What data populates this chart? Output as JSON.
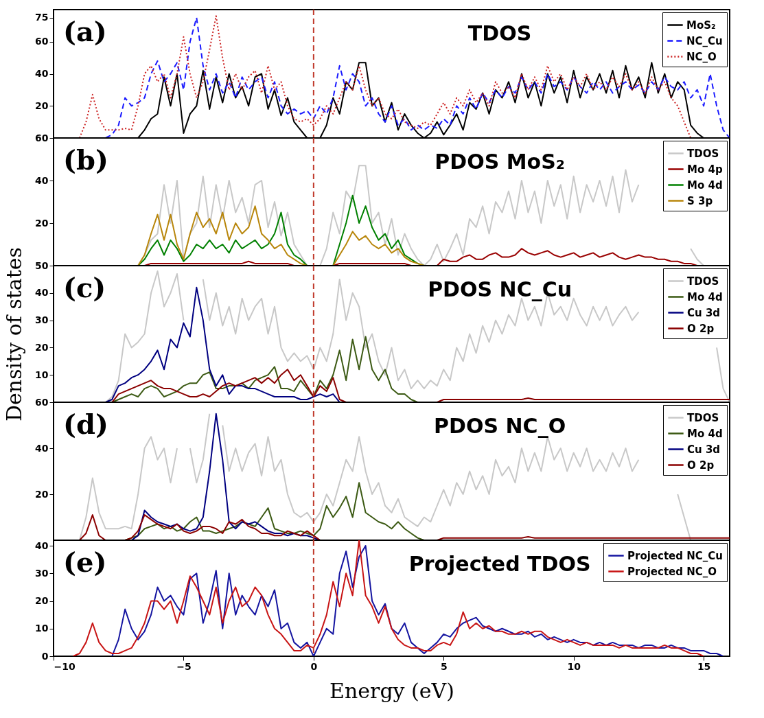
{
  "chart_data": [
    {
      "type": "line",
      "title": "TDOS",
      "annotations": [
        "(a)"
      ],
      "x": [
        -9,
        -8.75,
        -8.5,
        -8.25,
        -8,
        -7.75,
        -7.5,
        -7.25,
        -7,
        -6.75,
        -6.5,
        -6.25,
        -6,
        -5.75,
        -5.5,
        -5.25,
        -5,
        -4.75,
        -4.5,
        -4.25,
        -4,
        -3.75,
        -3.5,
        -3.25,
        -3,
        -2.75,
        -2.5,
        -2.25,
        -2,
        -1.75,
        -1.5,
        -1.25,
        -1,
        -0.75,
        -0.5,
        -0.25,
        0,
        0.25,
        0.5,
        0.75,
        1,
        1.25,
        1.5,
        1.75,
        2,
        2.25,
        2.5,
        2.75,
        3,
        3.25,
        3.5,
        3.75,
        4,
        4.25,
        4.5,
        4.75,
        5,
        5.25,
        5.5,
        5.75,
        6,
        6.25,
        6.5,
        6.75,
        7,
        7.25,
        7.5,
        7.75,
        8,
        8.25,
        8.5,
        8.75,
        9,
        9.25,
        9.5,
        9.75,
        10,
        10.25,
        10.5,
        10.75,
        11,
        11.25,
        11.5,
        11.75,
        12,
        12.25,
        12.5,
        12.75,
        13,
        13.25,
        13.5,
        13.75,
        14,
        14.25,
        14.5,
        14.75,
        15,
        15.25,
        15.5,
        15.75,
        16
      ],
      "series": [
        {
          "name": "MoS₂",
          "color": "#000000",
          "line_style": "solid",
          "values": [
            null,
            null,
            null,
            null,
            null,
            null,
            null,
            null,
            null,
            0,
            5,
            12,
            15,
            38,
            20,
            40,
            3,
            15,
            20,
            42,
            18,
            38,
            22,
            40,
            25,
            32,
            20,
            38,
            40,
            18,
            30,
            14,
            25,
            10,
            5,
            0,
            null,
            0,
            8,
            25,
            15,
            35,
            30,
            47,
            47,
            20,
            25,
            10,
            22,
            5,
            15,
            8,
            3,
            0,
            3,
            10,
            2,
            8,
            15,
            5,
            22,
            18,
            28,
            15,
            30,
            25,
            35,
            22,
            40,
            25,
            35,
            20,
            40,
            28,
            38,
            22,
            42,
            25,
            38,
            30,
            40,
            28,
            42,
            25,
            45,
            30,
            38,
            25,
            47,
            28,
            40,
            25,
            35,
            30,
            8,
            3,
            0,
            null,
            null,
            null,
            null
          ]
        },
        {
          "name": "NC_Cu",
          "color": "#1a1aff",
          "line_style": "dashed",
          "values": [
            null,
            null,
            null,
            null,
            0,
            2,
            8,
            25,
            20,
            22,
            25,
            40,
            48,
            35,
            40,
            47,
            30,
            60,
            75,
            45,
            30,
            40,
            28,
            35,
            25,
            38,
            30,
            35,
            38,
            25,
            35,
            20,
            15,
            18,
            15,
            17,
            12,
            20,
            15,
            25,
            45,
            30,
            40,
            35,
            20,
            25,
            15,
            10,
            20,
            8,
            12,
            5,
            8,
            5,
            8,
            6,
            12,
            8,
            20,
            15,
            25,
            18,
            28,
            22,
            30,
            25,
            32,
            28,
            38,
            30,
            35,
            28,
            40,
            32,
            35,
            30,
            38,
            32,
            28,
            35,
            30,
            35,
            28,
            32,
            35,
            30,
            33,
            28,
            35,
            30,
            38,
            32,
            30,
            35,
            25,
            30,
            20,
            40,
            20,
            5,
            0
          ]
        },
        {
          "name": "NC_O",
          "color": "#cc2222",
          "line_style": "dotted",
          "values": [
            0,
            10,
            27,
            12,
            5,
            5,
            5,
            6,
            5,
            20,
            40,
            45,
            35,
            40,
            25,
            40,
            63,
            40,
            25,
            35,
            55,
            76,
            50,
            30,
            40,
            30,
            38,
            42,
            28,
            45,
            30,
            35,
            20,
            12,
            10,
            12,
            8,
            12,
            20,
            15,
            25,
            35,
            30,
            45,
            30,
            20,
            25,
            15,
            12,
            18,
            10,
            8,
            6,
            10,
            8,
            15,
            22,
            15,
            25,
            20,
            30,
            22,
            28,
            20,
            35,
            28,
            32,
            25,
            40,
            30,
            38,
            30,
            45,
            35,
            40,
            30,
            38,
            32,
            40,
            30,
            35,
            30,
            38,
            32,
            40,
            30,
            35,
            28,
            38,
            30,
            35,
            25,
            20,
            10,
            0,
            null,
            null,
            null,
            null,
            null,
            null
          ]
        }
      ],
      "xlim": [
        -10,
        16
      ],
      "xticks": [
        -10,
        -5,
        0,
        5,
        10,
        15
      ],
      "ylim": [
        0,
        80
      ],
      "yticks": [
        20,
        40,
        60,
        75
      ],
      "tick_labels": "y",
      "legend": "top right",
      "ref_lines": [
        {
          "axis": "x",
          "value": 0,
          "color": "#c0392b",
          "line_style": "dashed"
        }
      ]
    },
    {
      "type": "line",
      "title": "PDOS MoS₂",
      "annotations": [
        "(b)"
      ],
      "x": [
        -6.75,
        -6.5,
        -6.25,
        -6,
        -5.75,
        -5.5,
        -5.25,
        -5,
        -4.75,
        -4.5,
        -4.25,
        -4,
        -3.75,
        -3.5,
        -3.25,
        -3,
        -2.75,
        -2.5,
        -2.25,
        -2,
        -1.75,
        -1.5,
        -1.25,
        -1,
        -0.75,
        -0.5,
        -0.25,
        0.25,
        0.5,
        0.75,
        1,
        1.25,
        1.5,
        1.75,
        2,
        2.25,
        2.5,
        2.75,
        3,
        3.25,
        3.5,
        3.75,
        4,
        4.25,
        4.5,
        4.75,
        5,
        5.25,
        5.5,
        5.75,
        6,
        6.25,
        6.5,
        6.75,
        7,
        7.25,
        7.5,
        7.75,
        8,
        8.25,
        8.5,
        8.75,
        9,
        9.25,
        9.5,
        9.75,
        10,
        10.25,
        10.5,
        10.75,
        11,
        11.25,
        11.5,
        11.75,
        12,
        12.25,
        12.5,
        12.75,
        13,
        13.25,
        13.5,
        13.75,
        14,
        14.25,
        14.5,
        14.75,
        15
      ],
      "series": [
        {
          "name": "TDOS",
          "color": "#c8c8c8",
          "values": [
            0,
            5,
            12,
            15,
            38,
            20,
            40,
            3,
            15,
            20,
            42,
            18,
            38,
            22,
            40,
            25,
            32,
            20,
            38,
            40,
            18,
            30,
            14,
            25,
            10,
            5,
            0,
            0,
            8,
            25,
            15,
            35,
            30,
            47,
            47,
            20,
            25,
            10,
            22,
            5,
            15,
            8,
            3,
            0,
            3,
            10,
            2,
            8,
            15,
            5,
            22,
            18,
            28,
            15,
            30,
            25,
            35,
            22,
            40,
            25,
            35,
            20,
            40,
            28,
            38,
            22,
            42,
            25,
            38,
            30,
            40,
            28,
            42,
            25,
            45,
            30,
            38,
            null,
            null,
            null,
            null,
            null,
            null,
            null,
            8,
            3,
            0
          ]
        },
        {
          "name": "Mo 4p",
          "color": "#990000",
          "values": [
            null,
            0,
            1,
            1,
            1,
            1,
            1,
            1,
            1,
            1,
            1,
            1,
            1,
            1,
            1,
            1,
            1,
            2,
            1,
            1,
            1,
            1,
            1,
            1,
            0,
            null,
            null,
            null,
            null,
            0,
            1,
            1,
            1,
            1,
            1,
            1,
            1,
            1,
            1,
            1,
            1,
            0,
            null,
            null,
            null,
            0,
            3,
            2,
            2,
            4,
            5,
            3,
            3,
            5,
            6,
            4,
            4,
            5,
            8,
            6,
            5,
            6,
            7,
            5,
            4,
            5,
            6,
            4,
            5,
            6,
            4,
            5,
            6,
            4,
            3,
            4,
            5,
            4,
            4,
            3,
            3,
            2,
            2,
            1,
            1,
            0,
            null
          ]
        },
        {
          "name": "Mo 4d",
          "color": "#008000",
          "values": [
            0,
            3,
            8,
            12,
            5,
            12,
            8,
            2,
            5,
            10,
            8,
            12,
            8,
            10,
            6,
            12,
            8,
            10,
            12,
            8,
            10,
            15,
            25,
            10,
            5,
            3,
            0,
            null,
            null,
            0,
            10,
            20,
            33,
            20,
            28,
            18,
            12,
            15,
            8,
            12,
            5,
            3,
            1,
            0,
            null,
            null,
            null,
            null,
            null,
            null,
            null,
            null,
            null,
            null,
            null,
            null,
            null,
            null,
            null,
            null,
            null,
            null,
            null,
            null,
            null,
            null,
            null,
            null,
            null,
            null,
            null,
            null,
            null,
            null,
            null,
            null,
            null,
            null,
            null,
            null,
            null,
            null,
            null,
            null,
            null,
            null,
            null
          ]
        },
        {
          "name": "S 3p",
          "color": "#b8860b",
          "values": [
            0,
            5,
            15,
            24,
            12,
            24,
            10,
            3,
            15,
            25,
            18,
            22,
            15,
            25,
            12,
            20,
            15,
            18,
            28,
            15,
            12,
            8,
            10,
            5,
            3,
            1,
            0,
            null,
            null,
            0,
            5,
            10,
            16,
            12,
            14,
            10,
            8,
            10,
            6,
            8,
            4,
            2,
            1,
            0,
            null,
            null,
            null,
            null,
            null,
            null,
            null,
            null,
            null,
            null,
            null,
            null,
            null,
            null,
            null,
            null,
            null,
            null,
            null,
            null,
            null,
            null,
            null,
            null,
            null,
            null,
            null,
            null,
            null,
            null,
            null,
            null,
            null,
            null,
            null,
            null,
            null,
            null,
            null,
            null,
            null,
            null,
            null
          ]
        }
      ],
      "xlim": [
        -10,
        16
      ],
      "xticks": [
        -10,
        -5,
        0,
        5,
        10,
        15
      ],
      "ylim": [
        0,
        60
      ],
      "yticks": [
        20,
        40,
        60
      ],
      "tick_labels": "y",
      "legend": "top right",
      "ref_lines": [
        {
          "axis": "x",
          "value": 0,
          "color": "#c0392b",
          "line_style": "dashed"
        }
      ]
    },
    {
      "type": "line",
      "title": "PDOS NC_Cu",
      "annotations": [
        "(c)"
      ],
      "ylabel": "Density of states",
      "x": [
        -8,
        -7.75,
        -7.5,
        -7.25,
        -7,
        -6.75,
        -6.5,
        -6.25,
        -6,
        -5.75,
        -5.5,
        -5.25,
        -5,
        -4.75,
        -4.5,
        -4.25,
        -4,
        -3.75,
        -3.5,
        -3.25,
        -3,
        -2.75,
        -2.5,
        -2.25,
        -2,
        -1.75,
        -1.5,
        -1.25,
        -1,
        -0.75,
        -0.5,
        -0.25,
        0,
        0.25,
        0.5,
        0.75,
        1,
        1.25,
        1.5,
        1.75,
        2,
        2.25,
        2.5,
        2.75,
        3,
        3.25,
        3.5,
        3.75,
        4,
        4.25,
        4.5,
        4.75,
        5,
        5.25,
        5.5,
        5.75,
        6,
        6.25,
        6.5,
        6.75,
        7,
        7.25,
        7.5,
        7.75,
        8,
        8.25,
        8.5,
        8.75,
        9,
        9.25,
        9.5,
        9.75,
        10,
        10.25,
        10.5,
        10.75,
        11,
        11.25,
        11.5,
        11.75,
        12,
        12.25,
        12.5,
        12.75,
        13,
        13.25,
        13.5,
        13.75,
        14,
        14.25,
        14.5,
        14.75,
        15,
        15.25,
        15.5,
        15.75,
        16
      ],
      "series": [
        {
          "name": "TDOS",
          "color": "#c8c8c8",
          "values": [
            0,
            2,
            8,
            25,
            20,
            22,
            25,
            40,
            48,
            35,
            40,
            47,
            30,
            null,
            null,
            45,
            30,
            40,
            28,
            35,
            25,
            38,
            30,
            35,
            38,
            25,
            35,
            20,
            15,
            18,
            15,
            17,
            12,
            20,
            15,
            25,
            45,
            30,
            40,
            35,
            20,
            25,
            15,
            10,
            20,
            8,
            12,
            5,
            8,
            5,
            8,
            6,
            12,
            8,
            20,
            15,
            25,
            18,
            28,
            22,
            30,
            25,
            32,
            28,
            38,
            30,
            35,
            28,
            40,
            32,
            35,
            30,
            38,
            32,
            28,
            35,
            30,
            35,
            28,
            32,
            35,
            30,
            33,
            null,
            null,
            null,
            null,
            null,
            null,
            null,
            null,
            null,
            null,
            null,
            20,
            5,
            0
          ]
        },
        {
          "name": "Mo 4d",
          "color": "#3c5a14",
          "values": [
            null,
            0,
            1,
            2,
            3,
            2,
            5,
            6,
            5,
            2,
            3,
            4,
            6,
            7,
            7,
            10,
            11,
            5,
            5,
            6,
            6,
            7,
            5,
            8,
            9,
            10,
            13,
            5,
            5,
            4,
            8,
            5,
            2,
            8,
            5,
            10,
            19,
            8,
            23,
            12,
            24,
            12,
            8,
            12,
            5,
            3,
            3,
            1,
            0,
            null,
            null,
            null,
            null,
            null,
            null,
            null,
            null,
            null,
            null,
            null,
            null,
            null,
            null,
            null,
            null,
            null,
            null,
            null,
            null,
            null,
            null,
            null,
            null,
            null,
            null,
            null,
            null,
            null,
            null,
            null,
            null,
            null,
            null,
            null,
            null,
            null,
            null,
            null,
            null,
            null,
            null,
            null,
            null,
            null,
            null,
            null,
            null
          ]
        },
        {
          "name": "Cu 3d",
          "color": "#000080",
          "values": [
            0,
            1,
            6,
            7,
            9,
            10,
            12,
            15,
            19,
            12,
            23,
            20,
            29,
            24,
            42,
            30,
            12,
            6,
            10,
            3,
            6,
            6,
            5,
            5,
            4,
            3,
            2,
            2,
            2,
            2,
            1,
            1,
            2,
            3,
            2,
            3,
            0,
            null,
            null,
            null,
            null,
            null,
            null,
            null,
            null,
            null,
            null,
            null,
            null,
            null,
            null,
            null,
            null,
            null,
            null,
            null,
            null,
            null,
            null,
            null,
            null,
            null,
            null,
            null,
            null,
            null,
            null,
            null,
            null,
            null,
            null,
            null,
            null,
            null,
            null,
            null,
            null,
            null,
            null,
            null,
            null,
            null,
            null,
            null,
            null,
            null,
            null,
            null,
            null,
            null,
            null,
            null,
            null,
            null,
            null,
            null,
            null
          ]
        },
        {
          "name": "O 2p",
          "color": "#8b0000",
          "values": [
            null,
            0,
            3,
            4,
            5,
            6,
            7,
            8,
            6,
            5,
            5,
            4,
            3,
            2,
            2,
            3,
            2,
            4,
            6,
            7,
            6,
            7,
            8,
            9,
            7,
            9,
            7,
            10,
            12,
            8,
            10,
            6,
            2,
            6,
            4,
            9,
            1,
            0,
            null,
            null,
            null,
            null,
            null,
            null,
            null,
            null,
            null,
            null,
            null,
            null,
            null,
            0,
            1,
            1,
            1,
            1,
            1,
            1,
            1,
            1,
            1,
            1,
            1,
            1,
            1,
            1.5,
            1,
            1,
            1,
            1,
            1,
            1,
            1,
            1,
            1,
            1,
            1,
            1,
            1,
            1,
            1,
            1,
            1,
            1,
            1,
            1,
            1,
            1,
            1,
            1,
            1,
            1,
            1,
            1,
            1,
            1,
            1
          ]
        }
      ],
      "xlim": [
        -10,
        16
      ],
      "xticks": [
        -10,
        -5,
        0,
        5,
        10,
        15
      ],
      "ylim": [
        0,
        50
      ],
      "yticks": [
        10,
        20,
        30,
        40,
        50
      ],
      "tick_labels": "y",
      "legend": "top right",
      "ref_lines": [
        {
          "axis": "x",
          "value": 0,
          "color": "#c0392b",
          "line_style": "dashed"
        }
      ]
    },
    {
      "type": "line",
      "title": "PDOS NC_O",
      "annotations": [
        "(d)"
      ],
      "x": [
        -9,
        -8.75,
        -8.5,
        -8.25,
        -8,
        -7.75,
        -7.5,
        -7.25,
        -7,
        -6.75,
        -6.5,
        -6.25,
        -6,
        -5.75,
        -5.5,
        -5.25,
        -5,
        -4.75,
        -4.5,
        -4.25,
        -4,
        -3.75,
        -3.5,
        -3.25,
        -3,
        -2.75,
        -2.5,
        -2.25,
        -2,
        -1.75,
        -1.5,
        -1.25,
        -1,
        -0.75,
        -0.5,
        -0.25,
        0,
        0.25,
        0.5,
        0.75,
        1,
        1.25,
        1.5,
        1.75,
        2,
        2.25,
        2.5,
        2.75,
        3,
        3.25,
        3.5,
        3.75,
        4,
        4.25,
        4.5,
        4.75,
        5,
        5.25,
        5.5,
        5.75,
        6,
        6.25,
        6.5,
        6.75,
        7,
        7.25,
        7.5,
        7.75,
        8,
        8.25,
        8.5,
        8.75,
        9,
        9.25,
        9.5,
        9.75,
        10,
        10.25,
        10.5,
        10.75,
        11,
        11.25,
        11.5,
        11.75,
        12,
        12.25,
        12.5,
        12.75,
        13,
        13.25,
        13.5,
        13.75,
        14,
        14.25,
        14.5,
        14.75,
        15,
        15.25,
        15.5,
        15.75,
        16
      ],
      "series": [
        {
          "name": "TDOS",
          "color": "#c8c8c8",
          "values": [
            0,
            10,
            27,
            12,
            5,
            5,
            5,
            6,
            5,
            20,
            40,
            45,
            35,
            40,
            25,
            40,
            null,
            40,
            25,
            35,
            55,
            null,
            50,
            30,
            40,
            30,
            38,
            42,
            28,
            45,
            30,
            35,
            20,
            12,
            10,
            12,
            8,
            12,
            20,
            15,
            25,
            35,
            30,
            45,
            30,
            20,
            25,
            15,
            12,
            18,
            10,
            8,
            6,
            10,
            8,
            15,
            22,
            15,
            25,
            20,
            30,
            22,
            28,
            20,
            35,
            28,
            32,
            25,
            40,
            30,
            38,
            30,
            45,
            35,
            40,
            30,
            38,
            32,
            40,
            30,
            35,
            30,
            38,
            32,
            40,
            30,
            35,
            null,
            null,
            null,
            null,
            null,
            20,
            10,
            0,
            null,
            null,
            null,
            null,
            null,
            null
          ]
        },
        {
          "name": "Mo 4d",
          "color": "#3c5a14",
          "values": [
            null,
            null,
            null,
            null,
            null,
            null,
            null,
            0,
            1,
            2,
            5,
            6,
            7,
            5,
            6,
            4,
            5,
            8,
            10,
            4,
            4,
            3,
            4,
            5,
            6,
            8,
            7,
            6,
            10,
            14,
            5,
            4,
            3,
            3,
            4,
            3,
            2,
            5,
            15,
            10,
            14,
            19,
            10,
            25,
            12,
            10,
            8,
            7,
            5,
            8,
            5,
            3,
            1,
            0,
            null,
            null,
            null,
            null,
            null,
            null,
            null,
            null,
            null,
            null,
            null,
            null,
            null,
            null,
            null,
            null,
            null,
            null,
            null,
            null,
            null,
            null,
            null,
            null,
            null,
            null,
            null,
            null,
            null,
            null,
            null,
            null,
            null,
            null,
            null,
            null,
            null,
            null,
            null,
            null,
            null,
            null,
            null,
            null,
            null,
            null,
            null
          ]
        },
        {
          "name": "Cu 3d",
          "color": "#000080",
          "values": [
            null,
            null,
            null,
            null,
            null,
            null,
            null,
            null,
            0,
            2,
            13,
            10,
            8,
            7,
            6,
            7,
            5,
            4,
            5,
            10,
            30,
            55,
            35,
            8,
            5,
            8,
            7,
            8,
            6,
            4,
            3,
            3,
            2,
            3,
            2,
            2,
            1,
            0,
            null,
            null,
            null,
            null,
            null,
            null,
            null,
            null,
            null,
            null,
            null,
            null,
            null,
            null,
            null,
            null,
            null,
            null,
            null,
            null,
            null,
            null,
            null,
            null,
            null,
            null,
            null,
            null,
            null,
            null,
            null,
            null,
            null,
            null,
            null,
            null,
            null,
            null,
            null,
            null,
            null,
            null,
            null,
            null,
            null,
            null,
            null,
            null,
            null,
            null,
            null,
            null,
            null,
            null,
            null,
            null,
            null,
            null,
            null,
            null,
            null,
            null,
            null
          ]
        },
        {
          "name": "O 2p",
          "color": "#8b0000",
          "values": [
            0,
            3,
            11,
            2,
            0,
            null,
            null,
            0,
            1,
            4,
            11,
            9,
            7,
            6,
            5,
            7,
            4,
            3,
            4,
            6,
            6,
            5,
            3,
            8,
            7,
            9,
            6,
            5,
            3,
            3,
            2,
            2,
            4,
            3,
            2,
            4,
            2,
            0,
            null,
            null,
            null,
            null,
            null,
            null,
            null,
            null,
            null,
            null,
            null,
            null,
            null,
            null,
            null,
            null,
            null,
            0,
            1,
            1,
            1,
            1,
            1,
            1,
            1,
            1,
            1,
            1,
            1,
            1,
            1,
            1.5,
            1,
            1,
            1,
            1,
            1,
            1,
            1,
            1,
            1,
            1,
            1,
            1,
            1,
            1,
            1,
            1,
            1,
            1,
            1,
            1,
            1,
            1,
            1,
            1,
            1,
            1,
            1,
            1,
            1,
            1,
            1
          ]
        }
      ],
      "xlim": [
        -10,
        16
      ],
      "xticks": [
        -10,
        -5,
        0,
        5,
        10,
        15
      ],
      "ylim": [
        0,
        60
      ],
      "yticks": [
        20,
        40,
        60
      ],
      "tick_labels": "y",
      "legend": "top right",
      "ref_lines": [
        {
          "axis": "x",
          "value": 0,
          "color": "#c0392b",
          "line_style": "dashed"
        }
      ]
    },
    {
      "type": "line",
      "title": "Projected TDOS",
      "annotations": [
        "(e)"
      ],
      "xlabel": "Energy (eV)",
      "x": [
        -9.25,
        -9,
        -8.75,
        -8.5,
        -8.25,
        -8,
        -7.75,
        -7.5,
        -7.25,
        -7,
        -6.75,
        -6.5,
        -6.25,
        -6,
        -5.75,
        -5.5,
        -5.25,
        -5,
        -4.75,
        -4.5,
        -4.25,
        -4,
        -3.75,
        -3.5,
        -3.25,
        -3,
        -2.75,
        -2.5,
        -2.25,
        -2,
        -1.75,
        -1.5,
        -1.25,
        -1,
        -0.75,
        -0.5,
        -0.25,
        0,
        0.25,
        0.5,
        0.75,
        1,
        1.25,
        1.5,
        1.75,
        2,
        2.25,
        2.5,
        2.75,
        3,
        3.25,
        3.5,
        3.75,
        4,
        4.25,
        4.5,
        4.75,
        5,
        5.25,
        5.5,
        5.75,
        6,
        6.25,
        6.5,
        6.75,
        7,
        7.25,
        7.5,
        7.75,
        8,
        8.25,
        8.5,
        8.75,
        9,
        9.25,
        9.5,
        9.75,
        10,
        10.25,
        10.5,
        10.75,
        11,
        11.25,
        11.5,
        11.75,
        12,
        12.25,
        12.5,
        12.75,
        13,
        13.25,
        13.5,
        13.75,
        14,
        14.25,
        14.5,
        14.75,
        15,
        15.25,
        15.5,
        15.75
      ],
      "series": [
        {
          "name": "Projected NC_Cu",
          "color": "#1414a0",
          "values": [
            null,
            null,
            null,
            null,
            null,
            null,
            0,
            6,
            17,
            10,
            6,
            9,
            15,
            25,
            20,
            22,
            18,
            15,
            28,
            30,
            12,
            20,
            31,
            10,
            30,
            15,
            22,
            18,
            15,
            22,
            18,
            24,
            10,
            12,
            5,
            3,
            5,
            0,
            5,
            10,
            8,
            30,
            38,
            25,
            36,
            40,
            20,
            15,
            19,
            10,
            8,
            12,
            5,
            3,
            1,
            3,
            5,
            8,
            7,
            10,
            12,
            13,
            14,
            11,
            10,
            9,
            10,
            9,
            8,
            8,
            9,
            7,
            8,
            6,
            7,
            6,
            5,
            6,
            5,
            5,
            4,
            5,
            4,
            5,
            4,
            4,
            4,
            3,
            4,
            4,
            3,
            3,
            4,
            3,
            3,
            2,
            2,
            2,
            1,
            1,
            0
          ]
        },
        {
          "name": "Projected NC_O",
          "color": "#c81414",
          "values": [
            0,
            1,
            5,
            12,
            5,
            2,
            1,
            1,
            2,
            3,
            7,
            12,
            20,
            20,
            17,
            20,
            12,
            20,
            29,
            25,
            20,
            15,
            25,
            12,
            20,
            25,
            18,
            20,
            25,
            22,
            15,
            10,
            8,
            5,
            2,
            2,
            4,
            3,
            8,
            15,
            27,
            18,
            30,
            22,
            42,
            22,
            18,
            12,
            18,
            10,
            6,
            4,
            3,
            3,
            2,
            2,
            4,
            5,
            4,
            8,
            16,
            10,
            12,
            10,
            11,
            9,
            9,
            8,
            8,
            9,
            8,
            9,
            9,
            7,
            6,
            5,
            6,
            5,
            4,
            5,
            4,
            4,
            4,
            4,
            3,
            4,
            3,
            3,
            3,
            3,
            3,
            4,
            3,
            3,
            2,
            1,
            1,
            0,
            null,
            null,
            null
          ]
        }
      ],
      "xlim": [
        -10,
        16
      ],
      "xticks": [
        -10,
        -5,
        0,
        5,
        10,
        15
      ],
      "ylim": [
        0,
        42
      ],
      "yticks": [
        0,
        10,
        20,
        30,
        40
      ],
      "legend": "top right",
      "ref_lines": [
        {
          "axis": "x",
          "value": 0,
          "color": "#c0392b",
          "line_style": "dashed"
        }
      ]
    }
  ]
}
